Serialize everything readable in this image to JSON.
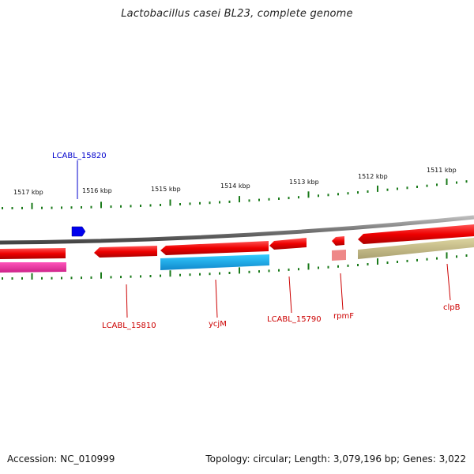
{
  "title": "Lactobacillus casei BL23, complete genome",
  "accession_text": "Accession: NC_010999",
  "info_text": "Topology: circular; Length: 3,079,196 bp; Genes: 3,022",
  "scale_labels": [
    "1517 kbp",
    "1516 kbp",
    "1515 kbp",
    "1514 kbp",
    "1513 kbp",
    "1512 kbp",
    "1511 kbp"
  ],
  "genes": [
    {
      "name": "LCABL_15820",
      "color": "#0000cc"
    },
    {
      "name": "LCABL_15810",
      "color": "#cc0000"
    },
    {
      "name": "ycjM",
      "color": "#cc0000"
    },
    {
      "name": "LCABL_15790",
      "color": "#cc0000"
    },
    {
      "name": "rpmF",
      "color": "#cc0000"
    },
    {
      "name": "clpB",
      "color": "#cc0000"
    }
  ],
  "colors": {
    "cds_red": "#ee1111",
    "cds_blue": "#0000ee",
    "backbone": "#888888",
    "tick_green": "#1a7a1a",
    "pink_feature": "#ee3399",
    "cyan_feature": "#22aadd",
    "light_red_feature": "#ee8888",
    "khaki_feature": "#c8c088"
  }
}
